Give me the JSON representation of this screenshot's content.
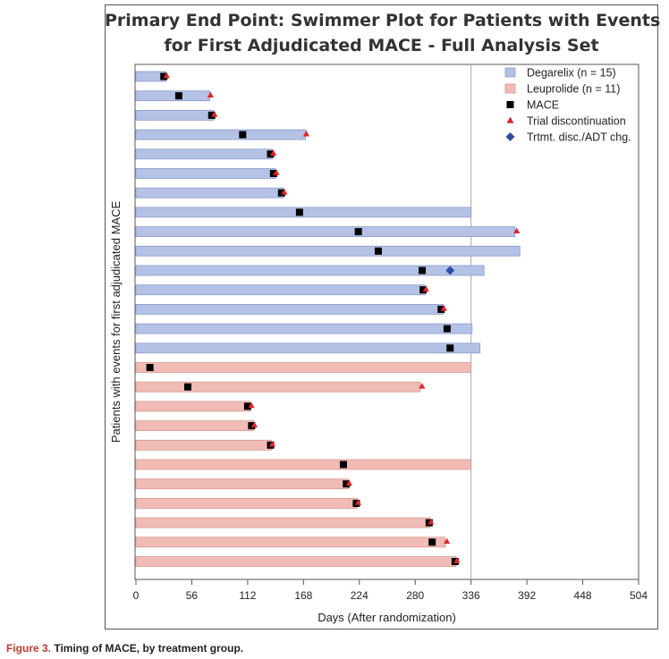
{
  "chart_data": {
    "type": "swimmer",
    "title_line1": "Primary End Point: Swimmer Plot for Patients with Events",
    "title_line2": "for First Adjudicated MACE - Full Analysis Set",
    "xlabel": "Days (After randomization)",
    "ylabel": "Patients with events for first adjudicated MACE",
    "xlim": [
      0,
      504
    ],
    "xticks": [
      0,
      56,
      112,
      168,
      224,
      280,
      336,
      392,
      448,
      504
    ],
    "reference_line_x": 336,
    "legend_position": "top-right",
    "legend": [
      {
        "label": "Degarelix (n = 15)",
        "marker": "bar",
        "color": "#b4c2e6"
      },
      {
        "label": "Leuprolide (n = 11)",
        "marker": "bar",
        "color": "#f2bcb6"
      },
      {
        "label": "MACE",
        "marker": "square",
        "color": "#000000"
      },
      {
        "label": "Trial discontinuation",
        "marker": "triangle",
        "color": "#e0252b"
      },
      {
        "label": "Trtmt. disc./ADT chg.",
        "marker": "diamond",
        "color": "#2f4fa6"
      }
    ],
    "colors": {
      "degarelix_bar": "#b4c2e6",
      "degarelix_edge": "#8c9bd0",
      "leuprolide_bar": "#f2bcb6",
      "leuprolide_edge": "#d99890",
      "mace": "#000000",
      "discontinuation": "#e0252b",
      "treatment_change": "#2f4fa6"
    },
    "patients": [
      {
        "group": "Degarelix",
        "duration": 30,
        "mace": 28,
        "discontinuation": 29
      },
      {
        "group": "Degarelix",
        "duration": 74,
        "mace": 43,
        "discontinuation": 73
      },
      {
        "group": "Degarelix",
        "duration": 78,
        "mace": 76,
        "discontinuation": 77
      },
      {
        "group": "Degarelix",
        "duration": 170,
        "mace": 107,
        "discontinuation": 169
      },
      {
        "group": "Degarelix",
        "duration": 137,
        "mace": 135,
        "discontinuation": 136
      },
      {
        "group": "Degarelix",
        "duration": 140,
        "mace": 138,
        "discontinuation": 139
      },
      {
        "group": "Degarelix",
        "duration": 148,
        "mace": 146,
        "discontinuation": 147
      },
      {
        "group": "Degarelix",
        "duration": 336,
        "mace": 164
      },
      {
        "group": "Degarelix",
        "duration": 380,
        "mace": 223,
        "discontinuation": 380
      },
      {
        "group": "Degarelix",
        "duration": 385,
        "mace": 243
      },
      {
        "group": "Degarelix",
        "duration": 349,
        "mace": 287,
        "treatment_change": 315
      },
      {
        "group": "Degarelix",
        "duration": 290,
        "mace": 288,
        "discontinuation": 289
      },
      {
        "group": "Degarelix",
        "duration": 308,
        "mace": 306,
        "discontinuation": 307
      },
      {
        "group": "Degarelix",
        "duration": 337,
        "mace": 312
      },
      {
        "group": "Degarelix",
        "duration": 345,
        "mace": 315
      },
      {
        "group": "Leuprolide",
        "duration": 336,
        "mace": 14
      },
      {
        "group": "Leuprolide",
        "duration": 285,
        "mace": 52,
        "discontinuation": 285
      },
      {
        "group": "Leuprolide",
        "duration": 115,
        "mace": 112,
        "discontinuation": 114
      },
      {
        "group": "Leuprolide",
        "duration": 118,
        "mace": 116,
        "discontinuation": 117
      },
      {
        "group": "Leuprolide",
        "duration": 136,
        "mace": 135,
        "discontinuation": 135
      },
      {
        "group": "Leuprolide",
        "duration": 336,
        "mace": 208
      },
      {
        "group": "Leuprolide",
        "duration": 213,
        "mace": 211,
        "discontinuation": 212
      },
      {
        "group": "Leuprolide",
        "duration": 222,
        "mace": 221,
        "discontinuation": 221
      },
      {
        "group": "Leuprolide",
        "duration": 295,
        "mace": 294,
        "discontinuation": 294
      },
      {
        "group": "Leuprolide",
        "duration": 310,
        "mace": 297,
        "discontinuation": 310
      },
      {
        "group": "Leuprolide",
        "duration": 321,
        "mace": 320,
        "discontinuation": 320
      }
    ]
  },
  "caption": {
    "label": "Figure 3.",
    "text": " Timing of MACE, by treatment group."
  }
}
